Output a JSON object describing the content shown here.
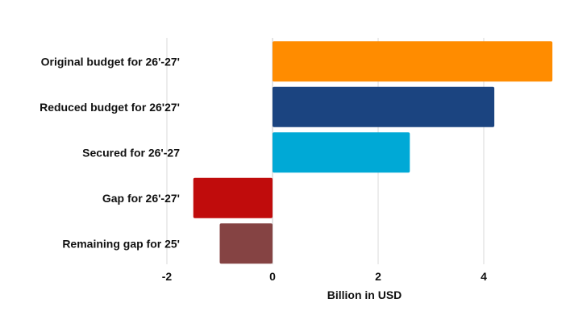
{
  "chart_data": {
    "type": "bar",
    "orientation": "horizontal",
    "categories": [
      "Original budget for 26'-27'",
      "Reduced budget for 26'27'",
      "Secured for 26'-27",
      "Gap for 26'-27'",
      "Remaining gap for 25'"
    ],
    "values": [
      5.3,
      4.2,
      2.6,
      -1.5,
      -1.0
    ],
    "colors": [
      "#FF8C00",
      "#1B4480",
      "#00A9D6",
      "#C00C0C",
      "#854343"
    ],
    "title": "",
    "xlabel": "Billion in USD",
    "ylabel": "",
    "xlim": [
      -2,
      5.4
    ],
    "xticks": [
      -2,
      0,
      2,
      4
    ],
    "xtick_labels": [
      "-2",
      "0",
      "2",
      "4"
    ],
    "grid": true,
    "legend": "none"
  }
}
